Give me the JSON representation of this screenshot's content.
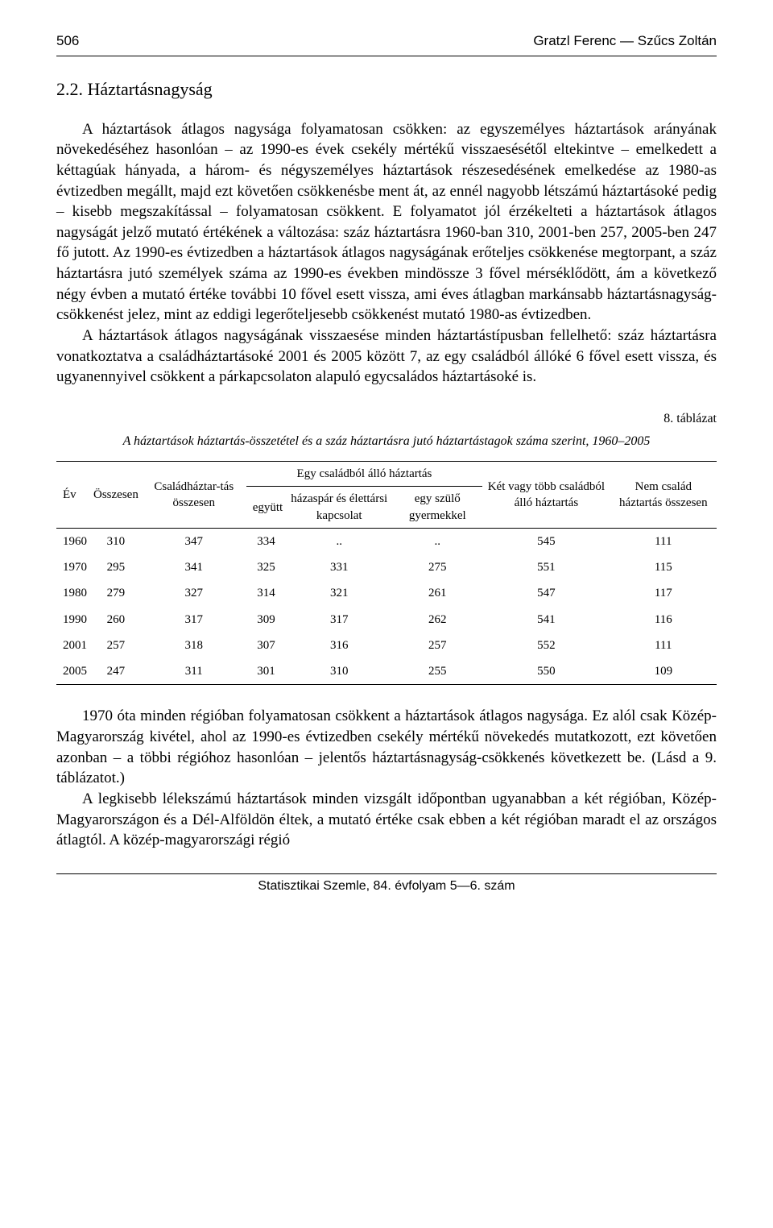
{
  "header": {
    "page_number": "506",
    "authors": "Gratzl Ferenc — Szűcs Zoltán"
  },
  "section": {
    "number_title": "2.2. Háztartásnagyság"
  },
  "paragraphs": {
    "p1": "A háztartások átlagos nagysága folyamatosan csökken: az egyszemélyes háztartások arányának növekedéséhez hasonlóan – az 1990-es évek csekély mértékű visszaesésétől eltekintve – emelkedett a kéttagúak hányada, a három- és négyszemélyes háztartások részesedésének emelkedése az 1980-as évtizedben megállt, majd ezt követően csökkenésbe ment át, az ennél nagyobb létszámú háztartásoké pedig – kisebb megszakítással – folyamatosan csökkent. E folyamatot jól érzékelteti a háztartások átlagos nagyságát jelző mutató értékének a változása: száz háztartásra 1960-ban 310, 2001-ben 257, 2005-ben 247 fő jutott. Az 1990-es évtizedben a háztartások átlagos nagyságának erőteljes csökkenése megtorpant, a száz háztartásra jutó személyek száma az 1990-es években mindössze 3 fővel mérséklődött, ám a következő négy évben a mutató értéke további 10 fővel esett vissza, ami éves átlagban markánsabb háztartásnagyság-csökkenést jelez, mint az eddigi legerőteljesebb csökkenést mutató 1980-as évtizedben.",
    "p2": "A háztartások átlagos nagyságának visszaesése minden háztartástípusban fellelhető: száz háztartásra vonatkoztatva a családháztartásoké 2001 és 2005 között 7, az egy családból állóké 6 fővel esett vissza, és ugyanennyivel csökkent a párkapcsolaton alapuló egycsaládos háztartásoké is.",
    "p3": "1970 óta minden régióban folyamatosan csökkent a háztartások átlagos nagysága. Ez alól csak Közép-Magyarország kivétel, ahol az 1990-es évtizedben csekély mértékű növekedés mutatkozott, ezt követően azonban – a többi régióhoz hasonlóan – jelentős háztartásnagyság-csökkenés következett be. (Lásd a 9. táblázatot.)",
    "p4": "A legkisebb lélekszámú háztartások minden vizsgált időpontban ugyanabban a két régióban, Közép-Magyarországon és a Dél-Alföldön éltek, a mutató értéke csak ebben a két régióban maradt el az országos átlagtól. A közép-magyarországi régió"
  },
  "table": {
    "label": "8. táblázat",
    "caption": "A háztartások háztartás-összetétel és a száz háztartásra jutó háztartástagok száma szerint, 1960–2005",
    "columns": {
      "c1": "Év",
      "c2": "Összesen",
      "c3": "Családháztar-tás összesen",
      "group": "Egy családból álló háztartás",
      "c4": "együtt",
      "c5": "házaspár és élettársi kapcsolat",
      "c6": "egy szülő gyermekkel",
      "c7": "Két vagy több családból álló háztartás",
      "c8": "Nem család háztartás összesen"
    },
    "rows": [
      [
        "1960",
        "310",
        "347",
        "334",
        "..",
        "..",
        "545",
        "111"
      ],
      [
        "1970",
        "295",
        "341",
        "325",
        "331",
        "275",
        "551",
        "115"
      ],
      [
        "1980",
        "279",
        "327",
        "314",
        "321",
        "261",
        "547",
        "117"
      ],
      [
        "1990",
        "260",
        "317",
        "309",
        "317",
        "262",
        "541",
        "116"
      ],
      [
        "2001",
        "257",
        "318",
        "307",
        "316",
        "257",
        "552",
        "111"
      ],
      [
        "2005",
        "247",
        "311",
        "301",
        "310",
        "255",
        "550",
        "109"
      ]
    ]
  },
  "footer": {
    "text": "Statisztikai Szemle, 84. évfolyam 5—6. szám"
  }
}
